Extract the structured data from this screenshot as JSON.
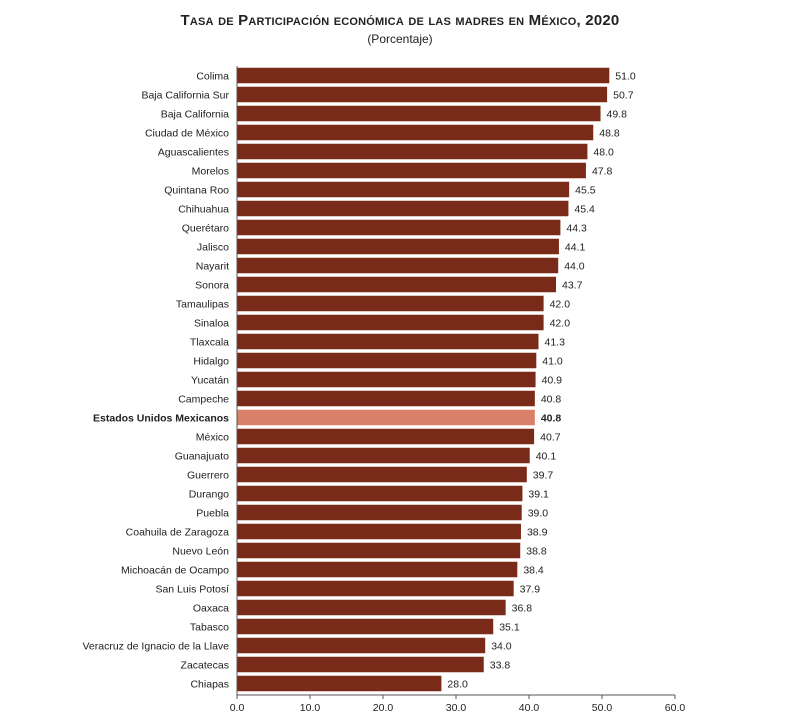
{
  "chart_data": {
    "type": "bar",
    "orientation": "horizontal",
    "title": "Tasa de Participación económica de las madres en México, 2020",
    "subtitle": "(Porcentaje)",
    "categories": [
      "Colima",
      "Baja California Sur",
      "Baja California",
      "Ciudad de México",
      "Aguascalientes",
      "Morelos",
      "Quintana Roo",
      "Chihuahua",
      "Querétaro",
      "Jalisco",
      "Nayarit",
      "Sonora",
      "Tamaulipas",
      "Sinaloa",
      "Tlaxcala",
      "Hidalgo",
      "Yucatán",
      "Campeche",
      "Estados Unidos Mexicanos",
      "México",
      "Guanajuato",
      "Guerrero",
      "Durango",
      "Puebla",
      "Coahuila de Zaragoza",
      "Nuevo León",
      "Michoacán de Ocampo",
      "San Luis Potosí",
      "Oaxaca",
      "Tabasco",
      "Veracruz de Ignacio de la Llave",
      "Zacatecas",
      "Chiapas"
    ],
    "values": [
      51.0,
      50.7,
      49.8,
      48.8,
      48.0,
      47.8,
      45.5,
      45.4,
      44.3,
      44.1,
      44.0,
      43.7,
      42.0,
      42.0,
      41.3,
      41.0,
      40.9,
      40.8,
      40.8,
      40.7,
      40.1,
      39.7,
      39.1,
      39.0,
      38.9,
      38.8,
      38.4,
      37.9,
      36.8,
      35.1,
      34.0,
      33.8,
      28.0
    ],
    "value_labels": [
      "51.0",
      "50.7",
      "49.8",
      "48.8",
      "48.0",
      "47.8",
      "45.5",
      "45.4",
      "44.3",
      "44.1",
      "44.0",
      "43.7",
      "42.0",
      "42.0",
      "41.3",
      "41.0",
      "40.9",
      "40.8",
      "40.8",
      "40.7",
      "40.1",
      "39.7",
      "39.1",
      "39.0",
      "38.9",
      "38.8",
      "38.4",
      "37.9",
      "36.8",
      "35.1",
      "34.0",
      "33.8",
      "28.0"
    ],
    "highlight_category": "Estados Unidos Mexicanos",
    "xlim": [
      0,
      60
    ],
    "xticks": [
      "0.0",
      "10.0",
      "20.0",
      "30.0",
      "40.0",
      "50.0",
      "60.0"
    ],
    "xlabel": "",
    "ylabel": "",
    "grid": false,
    "colors": {
      "bar": "#7a2a18",
      "highlight": "#d98068",
      "axis": "#555555"
    }
  }
}
